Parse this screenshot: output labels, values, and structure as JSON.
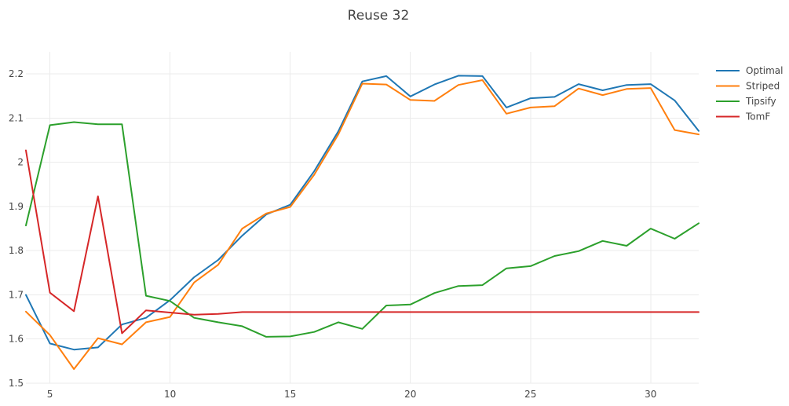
{
  "chart_data": {
    "type": "line",
    "title": "Reuse 32",
    "xlabel": "",
    "ylabel": "",
    "xlim": [
      4,
      32
    ],
    "ylim": [
      1.5,
      2.25
    ],
    "xticks": [
      5,
      10,
      15,
      20,
      25,
      30
    ],
    "yticks": [
      1.5,
      1.6,
      1.7,
      1.8,
      1.9,
      2,
      2.1,
      2.2
    ],
    "ytick_labels": [
      "1.5",
      "1.6",
      "1.7",
      "1.8",
      "1.9",
      "2",
      "2.1",
      "2.2"
    ],
    "grid": true,
    "legend_position": "top-right",
    "x": [
      4,
      5,
      6,
      7,
      8,
      9,
      10,
      11,
      12,
      13,
      14,
      15,
      16,
      17,
      18,
      19,
      20,
      21,
      22,
      23,
      24,
      25,
      26,
      27,
      28,
      29,
      30,
      31,
      32
    ],
    "series": [
      {
        "name": "Optimal",
        "color": "#1f77b4",
        "values": [
          1.7,
          1.59,
          1.576,
          1.581,
          1.633,
          1.648,
          1.688,
          1.74,
          1.779,
          1.834,
          1.882,
          1.904,
          1.98,
          2.07,
          2.183,
          2.195,
          2.149,
          2.176,
          2.196,
          2.195,
          2.124,
          2.145,
          2.148,
          2.177,
          2.163,
          2.175,
          2.177,
          2.14,
          2.071
        ]
      },
      {
        "name": "Striped",
        "color": "#ff7f0e",
        "values": [
          1.662,
          1.609,
          1.532,
          1.602,
          1.588,
          1.638,
          1.65,
          1.728,
          1.768,
          1.85,
          1.884,
          1.899,
          1.972,
          2.063,
          2.178,
          2.176,
          2.141,
          2.139,
          2.175,
          2.186,
          2.11,
          2.124,
          2.127,
          2.167,
          2.152,
          2.166,
          2.168,
          2.073,
          2.063
        ]
      },
      {
        "name": "Tipsify",
        "color": "#2ca02c",
        "values": [
          1.857,
          2.084,
          2.091,
          2.086,
          2.086,
          1.698,
          1.686,
          1.648,
          1.638,
          1.629,
          1.605,
          1.606,
          1.616,
          1.638,
          1.623,
          1.676,
          1.678,
          1.704,
          1.72,
          1.722,
          1.76,
          1.765,
          1.788,
          1.799,
          1.822,
          1.811,
          1.85,
          1.827,
          1.862
        ]
      },
      {
        "name": "TomF",
        "color": "#d62728",
        "values": [
          2.027,
          1.705,
          1.663,
          1.923,
          1.613,
          1.665,
          1.66,
          1.655,
          1.657,
          1.661,
          1.661,
          1.661,
          1.661,
          1.661,
          1.661,
          1.661,
          1.661,
          1.661,
          1.661,
          1.661,
          1.661,
          1.661,
          1.661,
          1.661,
          1.661,
          1.661,
          1.661,
          1.661,
          1.661
        ]
      }
    ]
  }
}
